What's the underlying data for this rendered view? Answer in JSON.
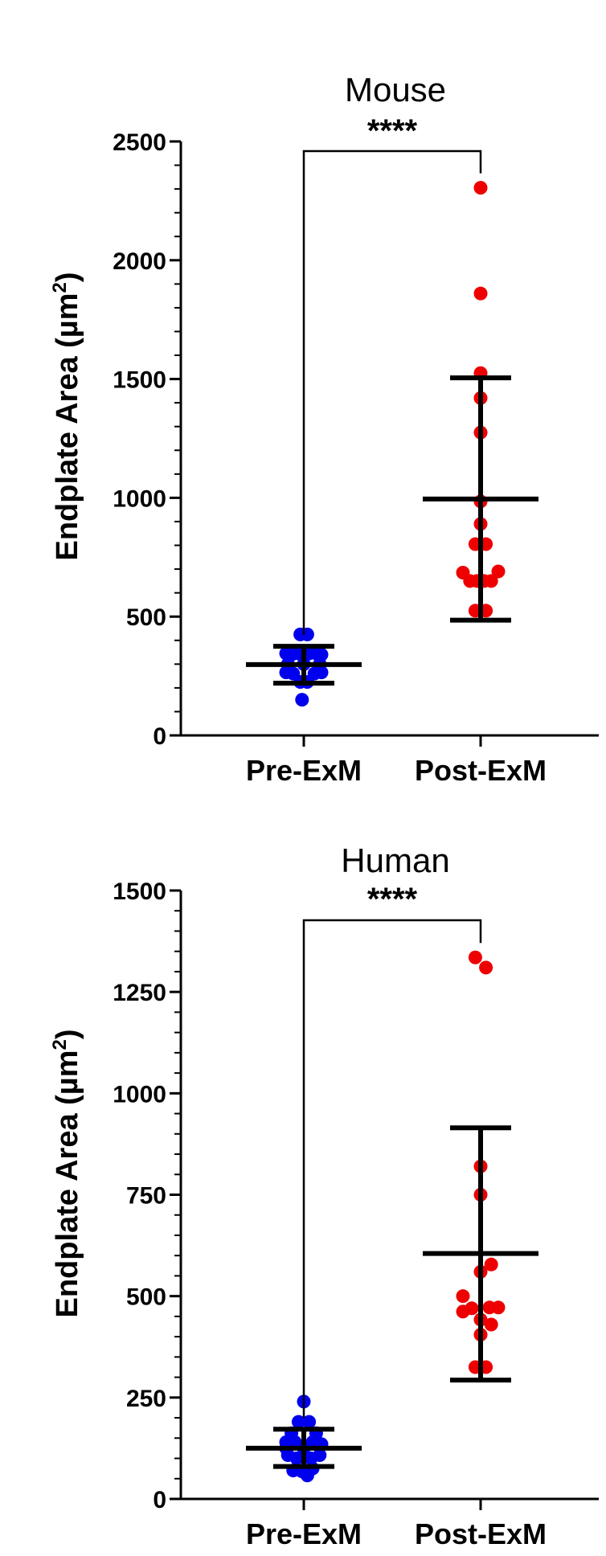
{
  "chart_data": [
    {
      "type": "scatter",
      "title": "Mouse",
      "ylabel": "Endplate Area  (µm²)",
      "ylabel_main": "Endplate Area  (µm",
      "ylabel_sup": "2",
      "ylabel_close": ")",
      "ylim": [
        0,
        2500
      ],
      "yticks": [
        0,
        500,
        1000,
        1500,
        2000,
        2500
      ],
      "categories": [
        "Pre-ExM",
        "Post-ExM"
      ],
      "significance": "****",
      "series": [
        {
          "category": "Pre-ExM",
          "color": "#0000ee",
          "mean": 298,
          "sd_low": 220,
          "sd_high": 375,
          "points": [
            {
              "dx": -1.0,
              "y": 345
            },
            {
              "dx": -0.7,
              "y": 340
            },
            {
              "dx": -0.3,
              "y": 345
            },
            {
              "dx": 0.3,
              "y": 345
            },
            {
              "dx": 0.7,
              "y": 345
            },
            {
              "dx": 1.0,
              "y": 340
            },
            {
              "dx": -0.2,
              "y": 425
            },
            {
              "dx": 0.2,
              "y": 425
            },
            {
              "dx": -0.9,
              "y": 300
            },
            {
              "dx": 0.0,
              "y": 300
            },
            {
              "dx": 0.9,
              "y": 300
            },
            {
              "dx": -1.0,
              "y": 265
            },
            {
              "dx": -0.6,
              "y": 260
            },
            {
              "dx": 0.6,
              "y": 260
            },
            {
              "dx": 1.0,
              "y": 265
            },
            {
              "dx": -0.2,
              "y": 225
            },
            {
              "dx": 0.2,
              "y": 225
            },
            {
              "dx": -0.1,
              "y": 150
            }
          ]
        },
        {
          "category": "Post-ExM",
          "color": "#ee0000",
          "mean": 995,
          "sd_low": 485,
          "sd_high": 1505,
          "points": [
            {
              "dx": 0.0,
              "y": 2305
            },
            {
              "dx": 0.0,
              "y": 1860
            },
            {
              "dx": 0.0,
              "y": 1525
            },
            {
              "dx": 0.0,
              "y": 1420
            },
            {
              "dx": 0.0,
              "y": 1275
            },
            {
              "dx": 0.0,
              "y": 985
            },
            {
              "dx": 0.0,
              "y": 890
            },
            {
              "dx": -0.3,
              "y": 805
            },
            {
              "dx": 0.3,
              "y": 805
            },
            {
              "dx": -1.0,
              "y": 685
            },
            {
              "dx": 1.0,
              "y": 690
            },
            {
              "dx": -0.6,
              "y": 650
            },
            {
              "dx": -0.2,
              "y": 650
            },
            {
              "dx": 0.2,
              "y": 650
            },
            {
              "dx": 0.6,
              "y": 650
            },
            {
              "dx": -0.3,
              "y": 525
            },
            {
              "dx": 0.3,
              "y": 525
            }
          ]
        }
      ]
    },
    {
      "type": "scatter",
      "title": "Human",
      "ylabel": "Endplate Area  (µm²)",
      "ylabel_main": "Endplate Area  (µm",
      "ylabel_sup": "2",
      "ylabel_close": ")",
      "ylim": [
        0,
        1500
      ],
      "yticks": [
        0,
        250,
        500,
        750,
        1000,
        1250,
        1500
      ],
      "categories": [
        "Pre-ExM",
        "Post-ExM"
      ],
      "significance": "****",
      "series": [
        {
          "category": "Pre-ExM",
          "color": "#0000ee",
          "mean": 125,
          "sd_low": 80,
          "sd_high": 172,
          "points": [
            {
              "dx": 0.0,
              "y": 240
            },
            {
              "dx": -0.3,
              "y": 190
            },
            {
              "dx": 0.3,
              "y": 190
            },
            {
              "dx": -0.7,
              "y": 162
            },
            {
              "dx": 0.7,
              "y": 162
            },
            {
              "dx": -1.0,
              "y": 140
            },
            {
              "dx": -0.5,
              "y": 140
            },
            {
              "dx": 0.5,
              "y": 140
            },
            {
              "dx": 1.0,
              "y": 135
            },
            {
              "dx": -1.0,
              "y": 125
            },
            {
              "dx": 0.0,
              "y": 125
            },
            {
              "dx": -0.9,
              "y": 108
            },
            {
              "dx": -0.4,
              "y": 100
            },
            {
              "dx": 0.4,
              "y": 100
            },
            {
              "dx": 0.9,
              "y": 108
            },
            {
              "dx": -0.6,
              "y": 70
            },
            {
              "dx": -0.1,
              "y": 68
            },
            {
              "dx": 0.5,
              "y": 75
            },
            {
              "dx": 0.2,
              "y": 58
            }
          ]
        },
        {
          "category": "Post-ExM",
          "color": "#ee0000",
          "mean": 605,
          "sd_low": 293,
          "sd_high": 915,
          "points": [
            {
              "dx": -0.3,
              "y": 1335
            },
            {
              "dx": 0.3,
              "y": 1310
            },
            {
              "dx": 0.0,
              "y": 820
            },
            {
              "dx": 0.0,
              "y": 750
            },
            {
              "dx": 0.6,
              "y": 578
            },
            {
              "dx": 0.0,
              "y": 560
            },
            {
              "dx": -1.0,
              "y": 500
            },
            {
              "dx": -1.0,
              "y": 462
            },
            {
              "dx": -0.5,
              "y": 470
            },
            {
              "dx": 1.0,
              "y": 472
            },
            {
              "dx": 0.5,
              "y": 472
            },
            {
              "dx": 0.0,
              "y": 442
            },
            {
              "dx": 0.6,
              "y": 430
            },
            {
              "dx": 0.0,
              "y": 405
            },
            {
              "dx": -0.3,
              "y": 325
            },
            {
              "dx": 0.3,
              "y": 325
            }
          ]
        }
      ]
    }
  ]
}
